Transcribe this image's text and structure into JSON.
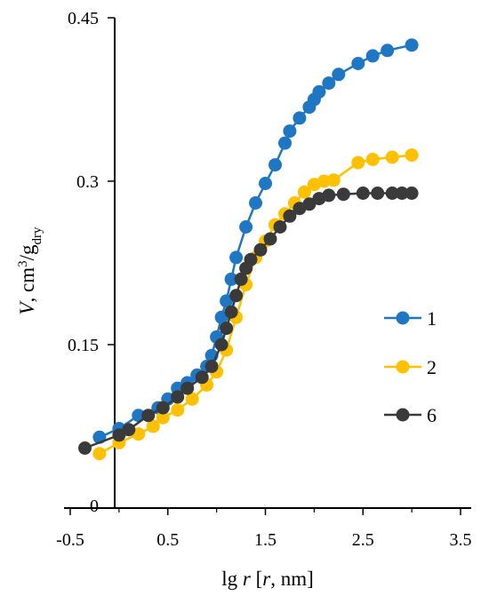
{
  "chart_data": {
    "type": "line",
    "xlabel": "lg r [r, nm]",
    "xlabel_parts": {
      "lg": "lg ",
      "r": "r",
      "bracket_open": " [",
      "r2": "r",
      "unit": ", nm]"
    },
    "ylabel_parts": {
      "v": "V",
      "sep": ", cm",
      "sup": "3",
      "slash": "/g",
      "sub": "dry"
    },
    "xlim": [
      -0.5,
      3.5
    ],
    "ylim": [
      0,
      0.45
    ],
    "x_ticks": [
      "-0.5",
      "0.5",
      "1.5",
      "2.5",
      "3.5"
    ],
    "x_tick_values": [
      -0.5,
      0.5,
      1.5,
      2.5,
      3.5
    ],
    "x_minor_ticks": [
      0,
      1,
      2,
      3
    ],
    "y_ticks": [
      "0",
      "0.15",
      "0.3",
      "0.45"
    ],
    "y_tick_values": [
      0,
      0.15,
      0.3,
      0.45
    ],
    "grid": false,
    "legend_position": "right",
    "series": [
      {
        "name": "1",
        "color": "#1f77c4",
        "points": [
          [
            -0.2,
            0.065
          ],
          [
            0.0,
            0.073
          ],
          [
            0.2,
            0.085
          ],
          [
            0.4,
            0.092
          ],
          [
            0.5,
            0.1
          ],
          [
            0.6,
            0.11
          ],
          [
            0.7,
            0.115
          ],
          [
            0.8,
            0.122
          ],
          [
            0.9,
            0.13
          ],
          [
            0.95,
            0.14
          ],
          [
            1.0,
            0.157
          ],
          [
            1.05,
            0.175
          ],
          [
            1.1,
            0.19
          ],
          [
            1.15,
            0.21
          ],
          [
            1.2,
            0.23
          ],
          [
            1.3,
            0.258
          ],
          [
            1.4,
            0.28
          ],
          [
            1.5,
            0.298
          ],
          [
            1.6,
            0.315
          ],
          [
            1.7,
            0.335
          ],
          [
            1.75,
            0.346
          ],
          [
            1.85,
            0.358
          ],
          [
            1.95,
            0.368
          ],
          [
            2.0,
            0.375
          ],
          [
            2.05,
            0.382
          ],
          [
            2.15,
            0.39
          ],
          [
            2.25,
            0.398
          ],
          [
            2.45,
            0.408
          ],
          [
            2.6,
            0.415
          ],
          [
            2.75,
            0.42
          ],
          [
            3.0,
            0.425
          ]
        ]
      },
      {
        "name": "2",
        "color": "#ffc000",
        "points": [
          [
            -0.2,
            0.05
          ],
          [
            0.0,
            0.06
          ],
          [
            0.2,
            0.068
          ],
          [
            0.35,
            0.075
          ],
          [
            0.45,
            0.083
          ],
          [
            0.6,
            0.09
          ],
          [
            0.75,
            0.1
          ],
          [
            0.9,
            0.113
          ],
          [
            1.0,
            0.125
          ],
          [
            1.1,
            0.145
          ],
          [
            1.2,
            0.175
          ],
          [
            1.3,
            0.205
          ],
          [
            1.4,
            0.23
          ],
          [
            1.5,
            0.245
          ],
          [
            1.6,
            0.26
          ],
          [
            1.7,
            0.27
          ],
          [
            1.8,
            0.28
          ],
          [
            1.9,
            0.29
          ],
          [
            2.0,
            0.297
          ],
          [
            2.1,
            0.3
          ],
          [
            2.2,
            0.301
          ],
          [
            2.45,
            0.317
          ],
          [
            2.6,
            0.32
          ],
          [
            2.8,
            0.322
          ],
          [
            3.0,
            0.324
          ]
        ]
      },
      {
        "name": "6",
        "color": "#3a3a3a",
        "points": [
          [
            -0.35,
            0.055
          ],
          [
            0.0,
            0.067
          ],
          [
            0.1,
            0.072
          ],
          [
            0.3,
            0.085
          ],
          [
            0.45,
            0.092
          ],
          [
            0.6,
            0.102
          ],
          [
            0.7,
            0.11
          ],
          [
            0.85,
            0.12
          ],
          [
            0.95,
            0.13
          ],
          [
            1.05,
            0.15
          ],
          [
            1.1,
            0.165
          ],
          [
            1.15,
            0.18
          ],
          [
            1.2,
            0.195
          ],
          [
            1.25,
            0.21
          ],
          [
            1.3,
            0.22
          ],
          [
            1.35,
            0.228
          ],
          [
            1.45,
            0.237
          ],
          [
            1.55,
            0.247
          ],
          [
            1.65,
            0.258
          ],
          [
            1.75,
            0.268
          ],
          [
            1.85,
            0.275
          ],
          [
            1.95,
            0.279
          ],
          [
            2.05,
            0.284
          ],
          [
            2.15,
            0.287
          ],
          [
            2.3,
            0.288
          ],
          [
            2.5,
            0.289
          ],
          [
            2.65,
            0.289
          ],
          [
            2.8,
            0.289
          ],
          [
            2.9,
            0.289
          ],
          [
            3.0,
            0.289
          ]
        ]
      }
    ]
  }
}
